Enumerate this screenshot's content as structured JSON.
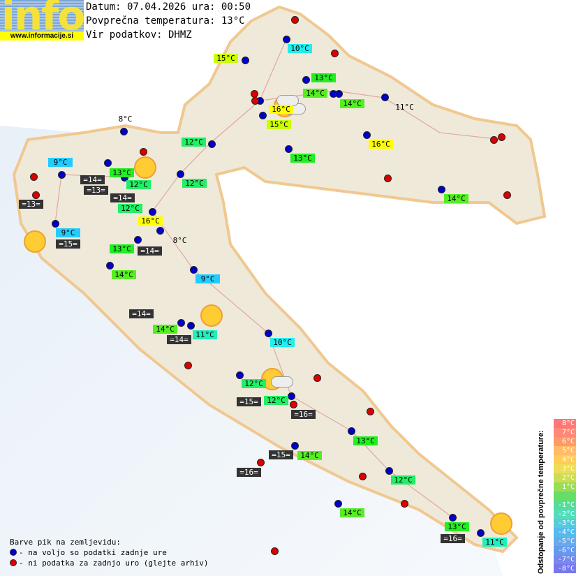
{
  "header": {
    "logo_word": "info",
    "logo_url": "www.informacije.si",
    "date_line": "Datum: 07.04.2026 ura: 00:50",
    "avg_temp_line": "Povprečna temperatura: 13°C",
    "source_line": "Vir podatkov: DHMZ"
  },
  "colors": {
    "blue_dot": "#0000cc",
    "red_dot": "#dd0000",
    "green": "#22ee22",
    "yellow_green": "#ccff00",
    "yellow": "#ffff00",
    "cyan": "#22eeee",
    "light_blue": "#22ccff",
    "teal": "#22eebb",
    "dark": "#333333"
  },
  "labels": [
    {
      "text": "15°C",
      "color": "#ccff00"
    },
    {
      "text": "10°C",
      "color": "#22eeee"
    },
    {
      "text": "13°C",
      "color": "#22ee22"
    },
    {
      "text": "14°C",
      "color": "#55ee22"
    },
    {
      "text": "14°C",
      "color": "#55ee22"
    },
    {
      "text": "11°C",
      "color": "plain"
    },
    {
      "text": "16°C",
      "color": "#ffff00"
    },
    {
      "text": "15°C",
      "color": "#ccff00"
    },
    {
      "text": "13°C",
      "color": "#22ee22"
    },
    {
      "text": "16°C",
      "color": "#ffff00"
    },
    {
      "text": "14°C",
      "color": "#55ee22"
    },
    {
      "text": "12°C",
      "color": "#22ee66"
    },
    {
      "text": "8°C",
      "color": "plain"
    },
    {
      "text": "9°C",
      "color": "#22ccff"
    },
    {
      "text": "=14=",
      "color": "dark"
    },
    {
      "text": "13°C",
      "color": "#22ee22"
    },
    {
      "text": "12°C",
      "color": "#22ee66"
    },
    {
      "text": "=13=",
      "color": "dark"
    },
    {
      "text": "12°C",
      "color": "#22ee66"
    },
    {
      "text": "=14=",
      "color": "dark"
    },
    {
      "text": "12°C",
      "color": "#22ee66"
    },
    {
      "text": "=13=",
      "color": "dark"
    },
    {
      "text": "16°C",
      "color": "#ffff00"
    },
    {
      "text": "9°C",
      "color": "#22ccff"
    },
    {
      "text": "=15=",
      "color": "dark"
    },
    {
      "text": "8°C",
      "color": "plain"
    },
    {
      "text": "13°C",
      "color": "#22ee22"
    },
    {
      "text": "=14=",
      "color": "dark"
    },
    {
      "text": "14°C",
      "color": "#55ee22"
    },
    {
      "text": "9°C",
      "color": "#22ccff"
    },
    {
      "text": "=14=",
      "color": "dark"
    },
    {
      "text": "14°C",
      "color": "#55ee22"
    },
    {
      "text": "=14=",
      "color": "dark"
    },
    {
      "text": "11°C",
      "color": "#22eebb"
    },
    {
      "text": "10°C",
      "color": "#22eeee"
    },
    {
      "text": "12°C",
      "color": "#22ee66"
    },
    {
      "text": "=15=",
      "color": "dark"
    },
    {
      "text": "12°C",
      "color": "#22ee66"
    },
    {
      "text": "=16=",
      "color": "dark"
    },
    {
      "text": "13°C",
      "color": "#22ee22"
    },
    {
      "text": "=15=",
      "color": "dark"
    },
    {
      "text": "14°C",
      "color": "#55ee22"
    },
    {
      "text": "=16=",
      "color": "dark"
    },
    {
      "text": "12°C",
      "color": "#22ee66"
    },
    {
      "text": "14°C",
      "color": "#55ee22"
    },
    {
      "text": "13°C",
      "color": "#22ee22"
    },
    {
      "text": "=16=",
      "color": "dark"
    },
    {
      "text": "11°C",
      "color": "#22eebb"
    }
  ],
  "weather_icons": [
    "sun",
    "sun",
    "sun",
    "sun-cloud",
    "sun-cloud",
    "sun"
  ],
  "legend": {
    "title": "Barve pik na zemljevidu:",
    "blue": "- na voljo so podatki zadnje ure",
    "red": "- ni podatka za zadnjo uro (glejte arhiv)"
  },
  "scale": {
    "title": "Odstopanje od povprečne temperature:",
    "rows": [
      {
        "label": "8°C",
        "color": "#ff7777"
      },
      {
        "label": "7°C",
        "color": "#ff8877"
      },
      {
        "label": "6°C",
        "color": "#ff9966"
      },
      {
        "label": "5°C",
        "color": "#ffbb66"
      },
      {
        "label": "4°C",
        "color": "#ffcc55"
      },
      {
        "label": "3°C",
        "color": "#eedd55"
      },
      {
        "label": "2°C",
        "color": "#ccdd55"
      },
      {
        "label": "1°C",
        "color": "#99dd55"
      },
      {
        "label": "",
        "color": "#66dd66"
      },
      {
        "label": "-1°C",
        "color": "#55dd99"
      },
      {
        "label": "-2°C",
        "color": "#55ddbb"
      },
      {
        "label": "-3°C",
        "color": "#55ccdd"
      },
      {
        "label": "-4°C",
        "color": "#55bbee"
      },
      {
        "label": "-5°C",
        "color": "#66aaee"
      },
      {
        "label": "-6°C",
        "color": "#6699ee"
      },
      {
        "label": "-7°C",
        "color": "#7788ee"
      },
      {
        "label": "-8°C",
        "color": "#7777ee"
      }
    ]
  }
}
